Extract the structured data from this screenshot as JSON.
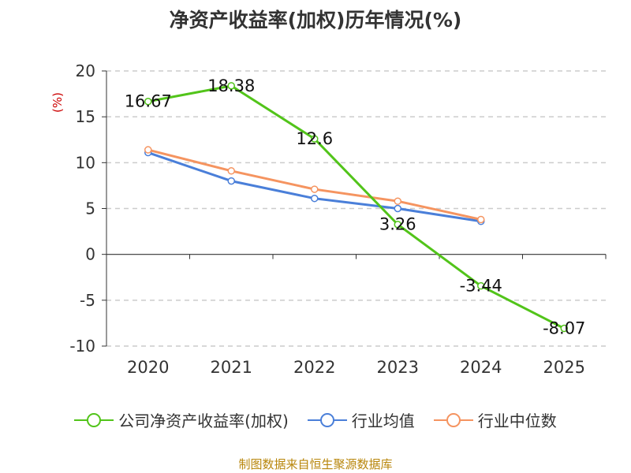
{
  "chart_data": {
    "type": "line",
    "title": "净资产收益率(加权)历年情况(%)",
    "ylabel": "(%)",
    "xlabel": "",
    "categories": [
      "2020",
      "2021",
      "2022",
      "2023",
      "2024",
      "2025"
    ],
    "ylim": [
      -10,
      20
    ],
    "yticks": [
      20,
      15,
      10,
      5,
      0,
      -5,
      -10
    ],
    "grid": true,
    "series": [
      {
        "name": "公司净资产收益率(加权)",
        "color": "#52c41a",
        "values": [
          16.67,
          18.38,
          12.6,
          3.26,
          -3.44,
          -8.07
        ],
        "labels": [
          "16.67",
          "18.38",
          "12.6",
          "3.26",
          "-3.44",
          "-8.07"
        ]
      },
      {
        "name": "行业均值",
        "color": "#4a7fd9",
        "values": [
          11.1,
          8.0,
          6.1,
          5.0,
          3.6,
          null
        ]
      },
      {
        "name": "行业中位数",
        "color": "#f59460",
        "values": [
          11.4,
          9.1,
          7.1,
          5.8,
          3.8,
          null
        ]
      }
    ],
    "source": "制图数据来自恒生聚源数据库"
  }
}
